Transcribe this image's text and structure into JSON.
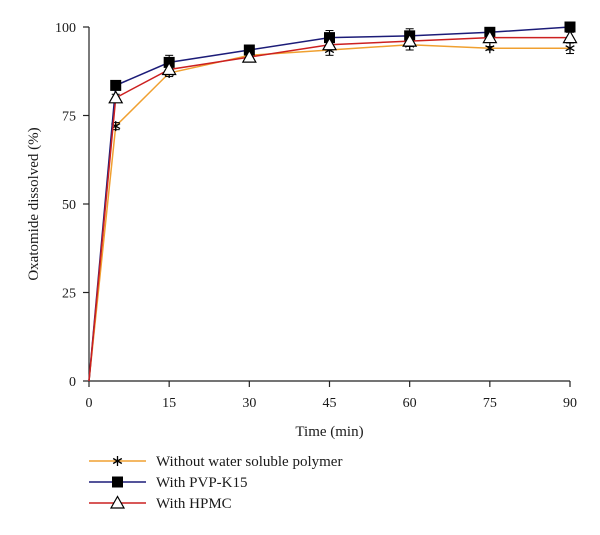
{
  "chart_data": {
    "type": "line",
    "xlabel": "Time (min)",
    "ylabel": "Oxatomide dissolved (%)",
    "xlim": [
      0,
      90
    ],
    "ylim": [
      0,
      100
    ],
    "xticks": [
      0,
      15,
      30,
      45,
      60,
      75,
      90
    ],
    "yticks": [
      0,
      25,
      50,
      75,
      100
    ],
    "grid": false,
    "legend_position": "bottom-left",
    "x": [
      0,
      5,
      15,
      30,
      45,
      60,
      75,
      90
    ],
    "series": [
      {
        "name": "Without water soluble polymer",
        "color": "#f0a030",
        "marker": "asterisk",
        "values": [
          0,
          72,
          87,
          92,
          93.5,
          95,
          94,
          94
        ],
        "errors": [
          0,
          1,
          1,
          0.5,
          1.5,
          1.5,
          0.5,
          1.5
        ]
      },
      {
        "name": "With PVP-K15",
        "color": "#1c1c78",
        "marker": "square",
        "values": [
          0,
          83.5,
          90,
          93.5,
          97,
          97.5,
          98.5,
          100
        ],
        "errors": [
          0,
          0.5,
          2,
          0.5,
          2,
          2,
          0.5,
          0.5
        ]
      },
      {
        "name": "With HPMC",
        "color": "#cc2020",
        "marker": "triangle",
        "values": [
          0,
          80,
          88,
          91.5,
          95,
          96,
          97,
          97
        ],
        "errors": [
          0,
          1,
          1,
          1,
          1.5,
          1.5,
          1,
          1.5
        ]
      }
    ]
  }
}
